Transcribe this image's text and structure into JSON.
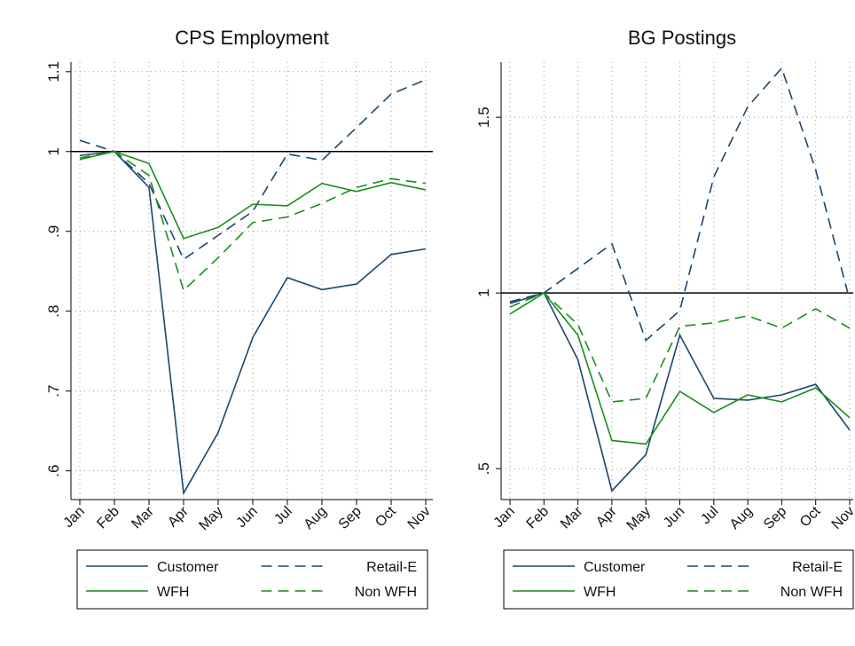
{
  "chart_data": [
    {
      "type": "line",
      "title": "CPS Employment",
      "categories": [
        "Jan",
        "Feb",
        "Mar",
        "Apr",
        "May",
        "Jun",
        "Jul",
        "Aug",
        "Sep",
        "Oct",
        "Nov"
      ],
      "series": [
        {
          "name": "Customer",
          "color": "#1a476f",
          "dashed": false,
          "values": [
            0.995,
            1,
            0.955,
            0.572,
            0.648,
            0.767,
            0.842,
            0.827,
            0.834,
            0.871,
            0.878
          ]
        },
        {
          "name": "Retail-E",
          "color": "#1a476f",
          "dashed": true,
          "values": [
            1.014,
            1,
            0.96,
            0.865,
            0.895,
            0.925,
            0.997,
            0.989,
            1.03,
            1.072,
            1.09
          ]
        },
        {
          "name": "WFH",
          "color": "#1e8c1e",
          "dashed": false,
          "values": [
            0.99,
            1,
            0.985,
            0.891,
            0.905,
            0.934,
            0.932,
            0.96,
            0.95,
            0.961,
            0.952
          ]
        },
        {
          "name": "Non WFH",
          "color": "#1e8c1e",
          "dashed": true,
          "values": [
            0.992,
            1,
            0.97,
            0.826,
            0.867,
            0.911,
            0.918,
            0.935,
            0.955,
            0.966,
            0.96
          ]
        }
      ],
      "ylim": [
        0.564,
        1.112
      ],
      "yticks": [
        {
          "value": 0.6,
          "label": ".6"
        },
        {
          "value": 0.7,
          "label": ".7"
        },
        {
          "value": 0.8,
          "label": ".8"
        },
        {
          "value": 0.9,
          "label": ".9"
        },
        1,
        1.1
      ],
      "reference_line": 1,
      "grid": true,
      "legend": "bottom"
    },
    {
      "type": "line",
      "title": "BG Postings",
      "categories": [
        "Jan",
        "Feb",
        "Mar",
        "Apr",
        "May",
        "Jun",
        "Jul",
        "Aug",
        "Sep",
        "Oct",
        "Nov"
      ],
      "series": [
        {
          "name": "Customer",
          "color": "#1a476f",
          "dashed": false,
          "values": [
            0.97,
            1,
            0.81,
            0.437,
            0.54,
            0.88,
            0.7,
            0.695,
            0.71,
            0.74,
            0.61
          ]
        },
        {
          "name": "Retail-E",
          "color": "#1a476f",
          "dashed": true,
          "values": [
            0.975,
            1,
            1.07,
            1.14,
            0.865,
            0.95,
            1.33,
            1.53,
            1.64,
            1.35,
            0.98
          ]
        },
        {
          "name": "WFH",
          "color": "#1e8c1e",
          "dashed": false,
          "values": [
            0.94,
            1,
            0.88,
            0.58,
            0.57,
            0.72,
            0.66,
            0.71,
            0.69,
            0.73,
            0.645
          ]
        },
        {
          "name": "Non WFH",
          "color": "#1e8c1e",
          "dashed": true,
          "values": [
            0.96,
            1,
            0.91,
            0.69,
            0.7,
            0.905,
            0.915,
            0.935,
            0.9,
            0.955,
            0.9
          ]
        }
      ],
      "ylim": [
        0.412,
        1.657
      ],
      "yticks": [
        {
          "value": 0.5,
          "label": ".5"
        },
        1,
        1.5
      ],
      "reference_line": 1,
      "grid": true,
      "legend": "bottom"
    }
  ]
}
